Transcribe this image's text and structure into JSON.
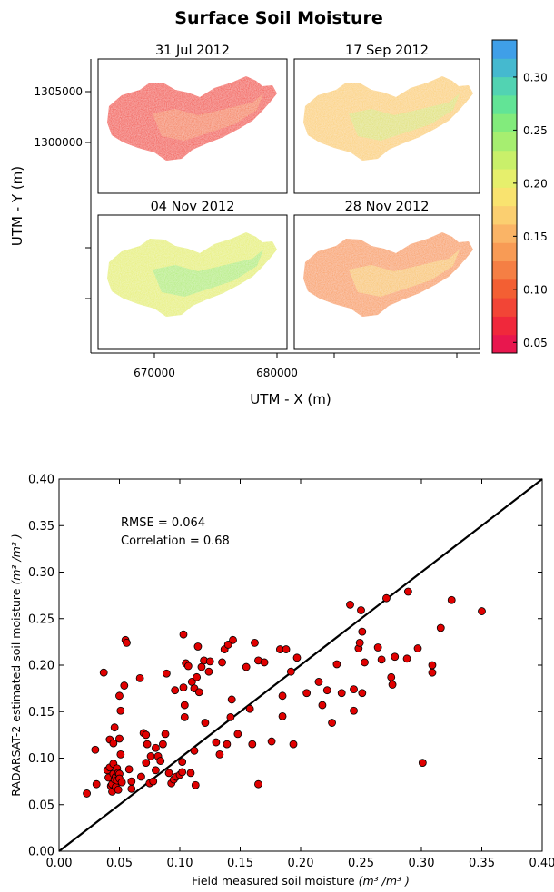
{
  "maps": {
    "title": "Surface Soil Moisture",
    "xlabel": "UTM - X (m)",
    "ylabel": "UTM - Y (m)",
    "panels": [
      {
        "date": "31 Jul 2012",
        "mean_moisture": 0.09
      },
      {
        "date": "17 Sep 2012",
        "mean_moisture": 0.17
      },
      {
        "date": "04 Nov 2012",
        "mean_moisture": 0.2
      },
      {
        "date": "28 Nov 2012",
        "mean_moisture": 0.14
      }
    ],
    "x_ticks": [
      {
        "value": 670000,
        "label": "670000"
      },
      {
        "value": 680000,
        "label": "680000"
      }
    ],
    "y_ticks": [
      {
        "value": 1300000,
        "label": "1300000"
      },
      {
        "value": 1305000,
        "label": "1305000"
      }
    ],
    "colorbar": {
      "range": [
        0.04,
        0.335
      ],
      "ticks": [
        "0.05",
        "0.10",
        "0.15",
        "0.20",
        "0.25",
        "0.30"
      ],
      "colors": [
        "#e8174e",
        "#f0283b",
        "#f24536",
        "#f35f33",
        "#f57f44",
        "#f89b55",
        "#fab466",
        "#fbcf70",
        "#f9e36f",
        "#e6ef6c",
        "#c9f06a",
        "#a6ee70",
        "#82eb7c",
        "#62e496",
        "#52d3b2",
        "#45b9cf",
        "#3f9fe8"
      ]
    }
  },
  "chart_data": {
    "type": "scatter",
    "xlabel": "Field measured soil moisture",
    "ylabel": "RADARSAT-2 estimated soil moisture",
    "units": "(m³ /m³ )",
    "xlim": [
      0,
      0.4
    ],
    "ylim": [
      0,
      0.4
    ],
    "x_ticks": [
      "0.00",
      "0.05",
      "0.10",
      "0.15",
      "0.20",
      "0.25",
      "0.30",
      "0.35",
      "0.40"
    ],
    "y_ticks": [
      "0.00",
      "0.05",
      "0.10",
      "0.15",
      "0.20",
      "0.25",
      "0.30",
      "0.35",
      "0.40"
    ],
    "annotations": [
      "RMSE = 0.064",
      "Correlation = 0.68"
    ],
    "reference_line": [
      [
        0,
        0
      ],
      [
        0.4,
        0.4
      ]
    ],
    "marker_color": "#e00000",
    "points": [
      [
        0.023,
        0.062
      ],
      [
        0.03,
        0.109
      ],
      [
        0.031,
        0.072
      ],
      [
        0.037,
        0.192
      ],
      [
        0.04,
        0.087
      ],
      [
        0.041,
        0.079
      ],
      [
        0.042,
        0.12
      ],
      [
        0.042,
        0.09
      ],
      [
        0.043,
        0.07
      ],
      [
        0.044,
        0.072
      ],
      [
        0.044,
        0.064
      ],
      [
        0.045,
        0.083
      ],
      [
        0.045,
        0.094
      ],
      [
        0.045,
        0.116
      ],
      [
        0.046,
        0.133
      ],
      [
        0.046,
        0.077
      ],
      [
        0.047,
        0.069
      ],
      [
        0.047,
        0.08
      ],
      [
        0.048,
        0.089
      ],
      [
        0.048,
        0.076
      ],
      [
        0.049,
        0.066
      ],
      [
        0.049,
        0.084
      ],
      [
        0.05,
        0.083
      ],
      [
        0.05,
        0.078
      ],
      [
        0.05,
        0.121
      ],
      [
        0.05,
        0.167
      ],
      [
        0.051,
        0.104
      ],
      [
        0.051,
        0.151
      ],
      [
        0.052,
        0.074
      ],
      [
        0.054,
        0.178
      ],
      [
        0.055,
        0.227
      ],
      [
        0.056,
        0.224
      ],
      [
        0.058,
        0.088
      ],
      [
        0.06,
        0.075
      ],
      [
        0.06,
        0.067
      ],
      [
        0.067,
        0.186
      ],
      [
        0.068,
        0.08
      ],
      [
        0.07,
        0.127
      ],
      [
        0.072,
        0.095
      ],
      [
        0.072,
        0.125
      ],
      [
        0.073,
        0.115
      ],
      [
        0.075,
        0.073
      ],
      [
        0.076,
        0.102
      ],
      [
        0.078,
        0.075
      ],
      [
        0.08,
        0.087
      ],
      [
        0.08,
        0.111
      ],
      [
        0.082,
        0.102
      ],
      [
        0.084,
        0.097
      ],
      [
        0.086,
        0.115
      ],
      [
        0.088,
        0.126
      ],
      [
        0.089,
        0.191
      ],
      [
        0.091,
        0.084
      ],
      [
        0.093,
        0.073
      ],
      [
        0.095,
        0.077
      ],
      [
        0.096,
        0.173
      ],
      [
        0.097,
        0.08
      ],
      [
        0.1,
        0.082
      ],
      [
        0.102,
        0.085
      ],
      [
        0.102,
        0.096
      ],
      [
        0.103,
        0.233
      ],
      [
        0.103,
        0.176
      ],
      [
        0.104,
        0.144
      ],
      [
        0.104,
        0.157
      ],
      [
        0.105,
        0.202
      ],
      [
        0.107,
        0.199
      ],
      [
        0.109,
        0.084
      ],
      [
        0.11,
        0.182
      ],
      [
        0.112,
        0.175
      ],
      [
        0.112,
        0.108
      ],
      [
        0.113,
        0.071
      ],
      [
        0.114,
        0.187
      ],
      [
        0.115,
        0.22
      ],
      [
        0.116,
        0.171
      ],
      [
        0.118,
        0.198
      ],
      [
        0.12,
        0.205
      ],
      [
        0.121,
        0.138
      ],
      [
        0.124,
        0.193
      ],
      [
        0.125,
        0.204
      ],
      [
        0.13,
        0.117
      ],
      [
        0.133,
        0.104
      ],
      [
        0.135,
        0.203
      ],
      [
        0.137,
        0.217
      ],
      [
        0.139,
        0.115
      ],
      [
        0.14,
        0.222
      ],
      [
        0.142,
        0.144
      ],
      [
        0.143,
        0.163
      ],
      [
        0.144,
        0.227
      ],
      [
        0.148,
        0.126
      ],
      [
        0.155,
        0.198
      ],
      [
        0.158,
        0.153
      ],
      [
        0.16,
        0.115
      ],
      [
        0.162,
        0.224
      ],
      [
        0.165,
        0.072
      ],
      [
        0.165,
        0.205
      ],
      [
        0.17,
        0.203
      ],
      [
        0.176,
        0.118
      ],
      [
        0.183,
        0.217
      ],
      [
        0.185,
        0.145
      ],
      [
        0.185,
        0.167
      ],
      [
        0.188,
        0.217
      ],
      [
        0.192,
        0.193
      ],
      [
        0.194,
        0.115
      ],
      [
        0.197,
        0.208
      ],
      [
        0.205,
        0.17
      ],
      [
        0.215,
        0.182
      ],
      [
        0.218,
        0.157
      ],
      [
        0.222,
        0.173
      ],
      [
        0.226,
        0.138
      ],
      [
        0.23,
        0.201
      ],
      [
        0.234,
        0.17
      ],
      [
        0.241,
        0.265
      ],
      [
        0.244,
        0.174
      ],
      [
        0.244,
        0.151
      ],
      [
        0.248,
        0.218
      ],
      [
        0.249,
        0.224
      ],
      [
        0.25,
        0.259
      ],
      [
        0.251,
        0.236
      ],
      [
        0.251,
        0.17
      ],
      [
        0.253,
        0.203
      ],
      [
        0.264,
        0.219
      ],
      [
        0.267,
        0.206
      ],
      [
        0.271,
        0.272
      ],
      [
        0.275,
        0.187
      ],
      [
        0.276,
        0.179
      ],
      [
        0.278,
        0.209
      ],
      [
        0.288,
        0.207
      ],
      [
        0.289,
        0.279
      ],
      [
        0.297,
        0.218
      ],
      [
        0.301,
        0.095
      ],
      [
        0.309,
        0.2
      ],
      [
        0.309,
        0.192
      ],
      [
        0.316,
        0.24
      ],
      [
        0.325,
        0.27
      ],
      [
        0.35,
        0.258
      ]
    ]
  }
}
